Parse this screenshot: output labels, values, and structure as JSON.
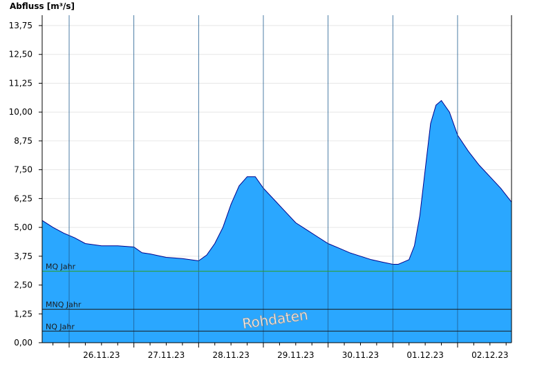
{
  "chart_data": {
    "type": "area",
    "ylabel": "Abfluss [m³/s]",
    "ylim": [
      0,
      14.2
    ],
    "yticks": [
      "0,00",
      "1,25",
      "2,50",
      "3,75",
      "5,00",
      "6,25",
      "7,50",
      "8,75",
      "10,00",
      "11,25",
      "12,50",
      "13,75"
    ],
    "ytick_values": [
      0,
      1.25,
      2.5,
      3.75,
      5.0,
      6.25,
      7.5,
      8.75,
      10.0,
      11.25,
      12.5,
      13.75
    ],
    "x_domain": [
      "25.11.23 14:00",
      "02.12.23 20:00"
    ],
    "xticks": [
      "26.11.23",
      "27.11.23",
      "28.11.23",
      "29.11.23",
      "30.11.23",
      "01.12.23",
      "02.12.23"
    ],
    "day_lines": [
      "26.11.23 00:00",
      "27.11.23 00:00",
      "28.11.23 00:00",
      "29.11.23 00:00",
      "30.11.23 00:00",
      "01.12.23 00:00",
      "02.12.23 00:00"
    ],
    "grid": "horizontal",
    "fill_color": "#2aa7ff",
    "line_color": "#00008b",
    "series": [
      {
        "x": [
          "25.11.23 14:00",
          "25.11.23 18:00",
          "25.11.23 22:00",
          "26.11.23 02:00",
          "26.11.23 06:00",
          "26.11.23 12:00",
          "26.11.23 18:00",
          "27.11.23 00:00",
          "27.11.23 03:00",
          "27.11.23 06:00",
          "27.11.23 12:00",
          "27.11.23 18:00",
          "28.11.23 00:00",
          "28.11.23 03:00",
          "28.11.23 06:00",
          "28.11.23 09:00",
          "28.11.23 12:00",
          "28.11.23 15:00",
          "28.11.23 18:00",
          "28.11.23 21:00",
          "29.11.23 00:00",
          "29.11.23 04:00",
          "29.11.23 08:00",
          "29.11.23 12:00",
          "29.11.23 16:00",
          "29.11.23 20:00",
          "30.11.23 00:00",
          "30.11.23 04:00",
          "30.11.23 08:00",
          "30.11.23 12:00",
          "30.11.23 16:00",
          "30.11.23 20:00",
          "01.12.23 00:00",
          "01.12.23 02:00",
          "01.12.23 04:00",
          "01.12.23 06:00",
          "01.12.23 08:00",
          "01.12.23 10:00",
          "01.12.23 12:00",
          "01.12.23 14:00",
          "01.12.23 16:00",
          "01.12.23 18:00",
          "01.12.23 21:00",
          "02.12.23 00:00",
          "02.12.23 04:00",
          "02.12.23 08:00",
          "02.12.23 12:00",
          "02.12.23 16:00",
          "02.12.23 20:00"
        ],
        "values": [
          5.3,
          5.0,
          4.75,
          4.55,
          4.3,
          4.2,
          4.2,
          4.15,
          3.9,
          3.85,
          3.7,
          3.65,
          3.55,
          3.8,
          4.3,
          5.0,
          6.0,
          6.8,
          7.2,
          7.2,
          6.7,
          6.2,
          5.7,
          5.2,
          4.9,
          4.6,
          4.3,
          4.1,
          3.9,
          3.75,
          3.6,
          3.5,
          3.4,
          3.4,
          3.5,
          3.6,
          4.2,
          5.5,
          7.5,
          9.5,
          10.3,
          10.5,
          10.0,
          9.0,
          8.3,
          7.7,
          7.2,
          6.7,
          6.1
        ]
      }
    ],
    "reference_lines": [
      {
        "label": "MQ Jahr",
        "value": 3.1,
        "color": "#2e9e2e"
      },
      {
        "label": "MNQ Jahr",
        "value": 1.45,
        "color": "#1a1a1a"
      },
      {
        "label": "NQ Jahr",
        "value": 0.5,
        "color": "#1a1a1a"
      }
    ],
    "watermark": "Rohdaten"
  }
}
